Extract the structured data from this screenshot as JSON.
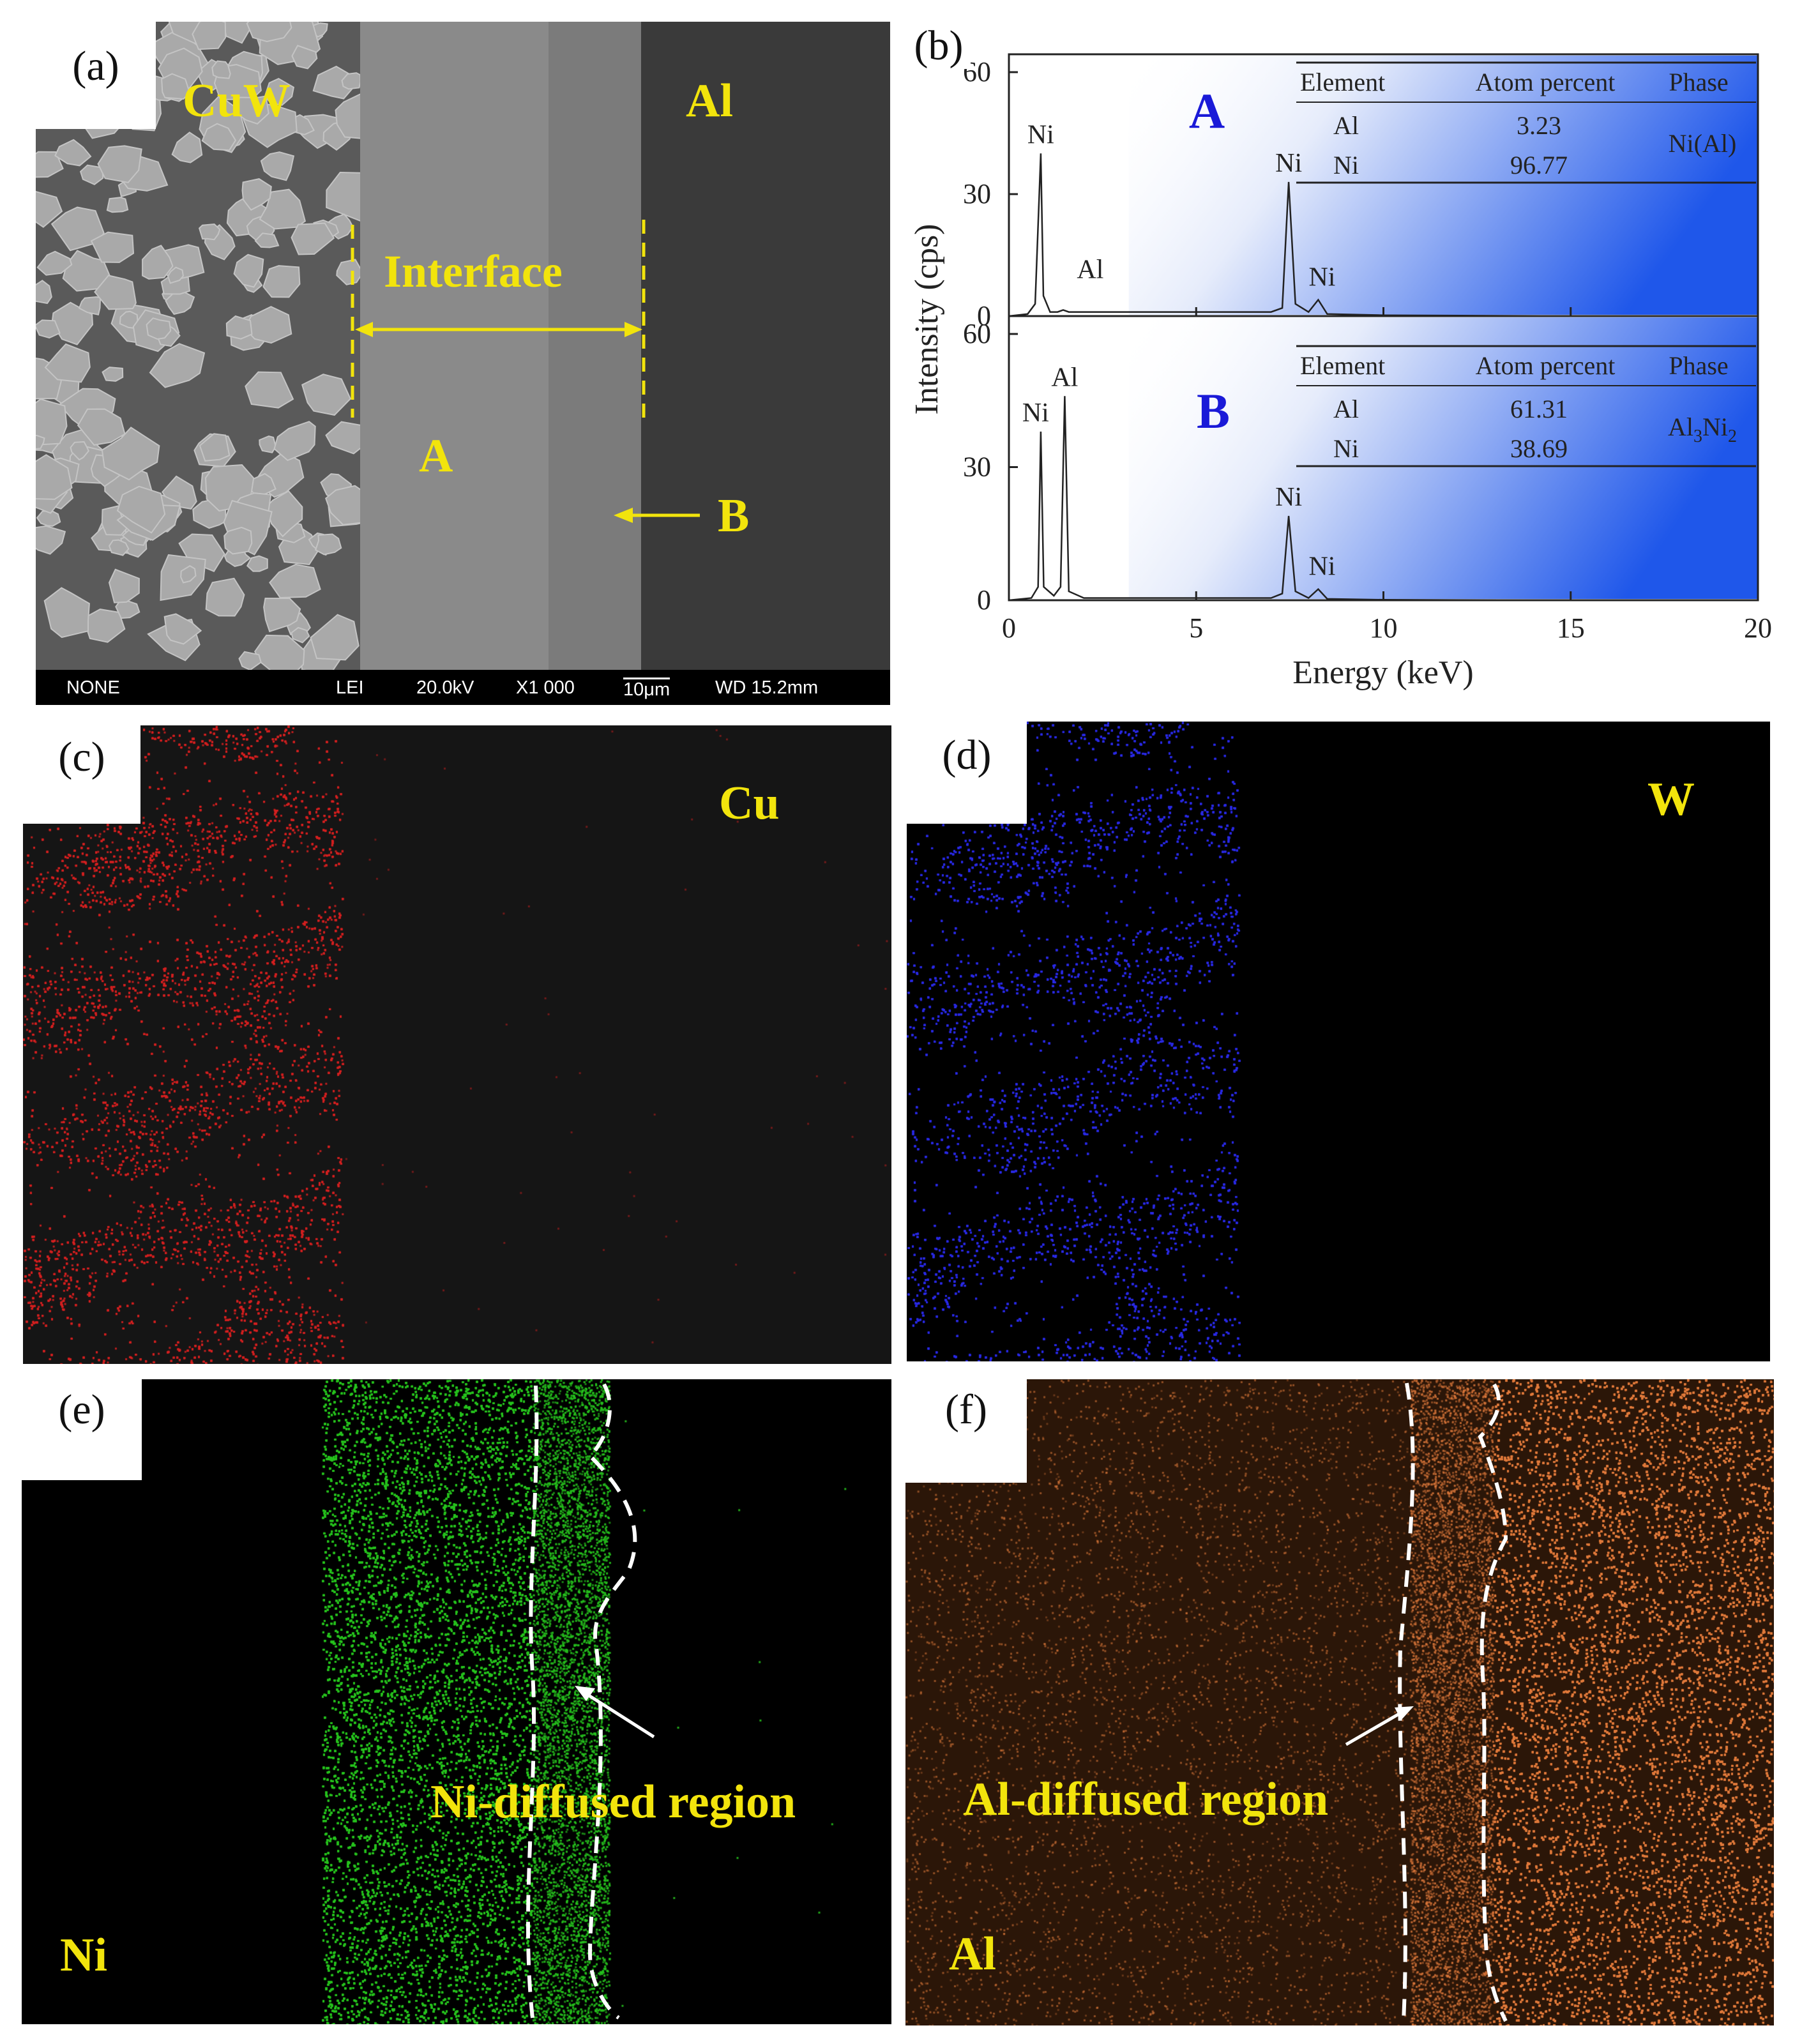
{
  "panels": {
    "a": {
      "label": "(a)",
      "regions": {
        "cuw": "CuW",
        "al": "Al",
        "interface": "Interface",
        "a": "A",
        "b": "B"
      },
      "info_bar": {
        "detector": "NONE",
        "mode": "LEI",
        "voltage": "20.0kV",
        "mag": "X1 000",
        "scale": "10μm",
        "wd": "WD 15.2mm"
      }
    },
    "b": {
      "label": "(b)"
    },
    "c": {
      "label": "(c)",
      "element": "Cu"
    },
    "d": {
      "label": "(d)",
      "element": "W"
    },
    "e": {
      "label": "(e)",
      "element": "Ni",
      "annotation": "Ni-diffused region"
    },
    "f": {
      "label": "(f)",
      "element": "Al",
      "annotation": "Al-diffused region"
    }
  },
  "colors": {
    "cu_map": "#d42020",
    "w_map": "#2a2ae6",
    "ni_map": "#27c21e",
    "al_map": "#e07a3c",
    "accent_text": "#f2e40c",
    "spot_label": "#1a1ad8"
  },
  "chart_data": {
    "type": "line",
    "xlabel": "Energy (keV)",
    "ylabel": "Intensity (cps)",
    "xlim": [
      0,
      20
    ],
    "xticks": [
      0,
      5,
      10,
      15,
      20
    ],
    "subplots": [
      {
        "name": "A",
        "ylim": [
          0,
          60
        ],
        "yticks": [
          0,
          30,
          60
        ],
        "x": [
          0,
          0.5,
          0.7,
          0.85,
          0.92,
          1.1,
          1.3,
          1.45,
          1.6,
          3,
          5,
          7,
          7.3,
          7.47,
          7.65,
          8.0,
          8.26,
          8.5,
          10,
          15,
          20
        ],
        "y": [
          0,
          0.5,
          3,
          40,
          5,
          1,
          1,
          1.5,
          1,
          1,
          1,
          1,
          2,
          33,
          3,
          1,
          4,
          0.5,
          0.2,
          0,
          0
        ],
        "peaks": [
          {
            "label": "Ni",
            "x": 0.85,
            "y": 40
          },
          {
            "label": "Al",
            "x": 1.49,
            "y": 1.5
          },
          {
            "label": "Ni",
            "x": 7.47,
            "y": 33
          },
          {
            "label": "Ni",
            "x": 8.26,
            "y": 4
          }
        ],
        "table": {
          "headers": [
            "Element",
            "Atom  percent",
            "Phase"
          ],
          "rows": [
            [
              "Al",
              "3.23"
            ],
            [
              "Ni",
              "96.77"
            ]
          ],
          "phase": "Ni(Al)"
        }
      },
      {
        "name": "B",
        "ylim": [
          0,
          60
        ],
        "yticks": [
          0,
          30,
          60
        ],
        "x": [
          0,
          0.6,
          0.78,
          0.85,
          0.93,
          1.2,
          1.38,
          1.49,
          1.6,
          2.0,
          5,
          7,
          7.3,
          7.47,
          7.65,
          8.0,
          8.26,
          8.5,
          10,
          15,
          20
        ],
        "y": [
          0,
          0.5,
          3,
          38,
          3,
          1,
          3,
          46,
          2,
          0.5,
          0.5,
          0.5,
          1.5,
          19,
          2,
          0.5,
          2.5,
          0.3,
          0.1,
          0,
          0
        ],
        "peaks": [
          {
            "label": "Ni",
            "x": 0.85,
            "y": 38
          },
          {
            "label": "Al",
            "x": 1.49,
            "y": 46
          },
          {
            "label": "Ni",
            "x": 7.47,
            "y": 19
          },
          {
            "label": "Ni",
            "x": 8.26,
            "y": 2.5
          }
        ],
        "table": {
          "headers": [
            "Element",
            "Atom  percent",
            "Phase"
          ],
          "rows": [
            [
              "Al",
              "61.31"
            ],
            [
              "Ni",
              "38.69"
            ]
          ],
          "phase": "Al3Ni2"
        }
      }
    ]
  }
}
